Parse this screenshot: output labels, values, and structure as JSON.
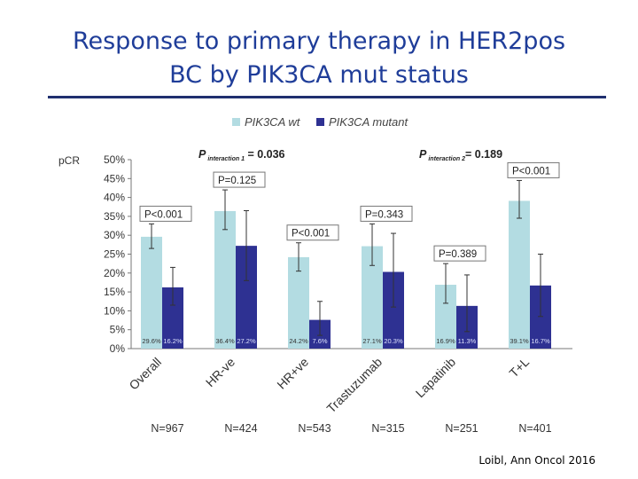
{
  "slide": {
    "title_line1": "Response to primary therapy in HER2pos",
    "title_line2": "BC by PIK3CA mut status",
    "citation": "Loibl, Ann Oncol 2016"
  },
  "chart_data": {
    "type": "bar",
    "ylabel": "pCR",
    "ylim": [
      0,
      50
    ],
    "yticks": [
      0,
      5,
      10,
      15,
      20,
      25,
      30,
      35,
      40,
      45,
      50
    ],
    "tick_suffix": "%",
    "categories": [
      "Overall",
      "HR-ve",
      "HR+ve",
      "Trastuzumab",
      "Lapatinib",
      "T+L"
    ],
    "n_labels": [
      "N=967",
      "N=424",
      "N=543",
      "N=315",
      "N=251",
      "N=401"
    ],
    "series": [
      {
        "name": "PIK3CA wt",
        "color": "#b3dce2",
        "values": [
          29.6,
          36.4,
          24.2,
          27.1,
          16.9,
          39.1
        ],
        "value_labels": [
          "29.6%",
          "36.4%",
          "24.2%",
          "27.1%",
          "16.9%",
          "39.1%"
        ],
        "ci_low": [
          26.5,
          31.5,
          20.5,
          22,
          12,
          34.5
        ],
        "ci_high": [
          33,
          42,
          28,
          33,
          22.5,
          44.5
        ]
      },
      {
        "name": "PIK3CA mutant",
        "color": "#2e3192",
        "values": [
          16.2,
          27.2,
          7.6,
          20.3,
          11.3,
          16.7
        ],
        "value_labels": [
          "16.2%",
          "27.2%",
          "7.6%",
          "20.3%",
          "11.3%",
          "16.7%"
        ],
        "ci_low": [
          11.5,
          18,
          3.5,
          11,
          4.5,
          8.5
        ],
        "ci_high": [
          21.5,
          36.5,
          12.5,
          30.5,
          19.5,
          25
        ]
      }
    ],
    "group_pvalues": [
      "P<0.001",
      "P=0.125",
      "P<0.001",
      "P=0.343",
      "P=0.389",
      "P<0.001"
    ],
    "interaction_annotations": [
      {
        "main": "P",
        "sub": "interaction 1",
        "value": " = 0.036"
      },
      {
        "main": "P",
        "sub": "interaction 2",
        "value": "= 0.189"
      }
    ],
    "legend_position": "top",
    "grid": false
  }
}
